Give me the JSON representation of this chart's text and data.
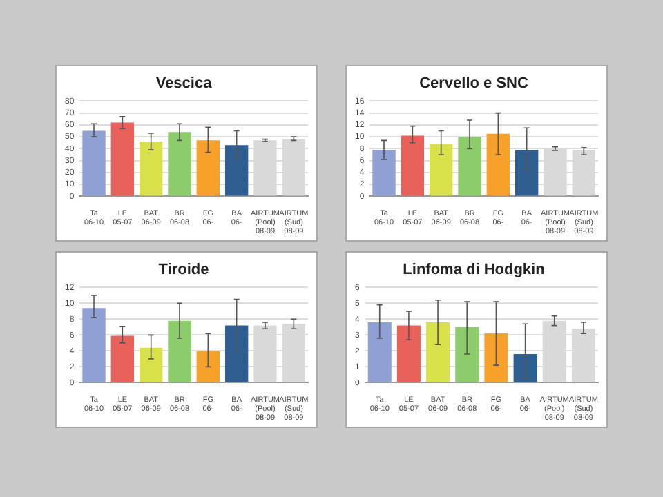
{
  "chart_data": [
    {
      "type": "bar",
      "title": "Vescica",
      "categories": [
        "Ta 06-10",
        "LE 05-07",
        "BAT 06-09",
        "BR 06-08",
        "FG 06-",
        "BA 06-",
        "AIRTUM (Pool) 08-09",
        "AIRTUM (Sud) 08-09"
      ],
      "colors": [
        "#8ea0d4",
        "#e8615a",
        "#d8e04a",
        "#8ccc6a",
        "#f7a12a",
        "#2f5f90",
        "#d9d9d9",
        "#d9d9d9"
      ],
      "values": [
        55,
        62,
        46,
        54,
        47,
        43,
        47,
        48
      ],
      "errors": [
        [
          50,
          61
        ],
        [
          57,
          67
        ],
        [
          39,
          53
        ],
        [
          47,
          61
        ],
        [
          37,
          58
        ],
        [
          32,
          55
        ],
        [
          46,
          48
        ],
        [
          47,
          50
        ]
      ],
      "ylim": [
        0,
        80
      ],
      "yticks": [
        0,
        10,
        20,
        30,
        40,
        50,
        60,
        70,
        80
      ],
      "grid": "y",
      "legend": false
    },
    {
      "type": "bar",
      "title": "Cervello e SNC",
      "categories": [
        "Ta 06-10",
        "LE 05-07",
        "BAT 06-09",
        "BR 06-08",
        "FG 06-",
        "BA 06-",
        "AIRTUM (Pool) 08-09",
        "AIRTUM (Sud) 08-09"
      ],
      "colors": [
        "#8ea0d4",
        "#e8615a",
        "#d8e04a",
        "#8ccc6a",
        "#f7a12a",
        "#2f5f90",
        "#d9d9d9",
        "#d9d9d9"
      ],
      "values": [
        7.8,
        10.2,
        8.8,
        10,
        10.5,
        7.8,
        8,
        7.8
      ],
      "errors": [
        [
          6.2,
          9.4
        ],
        [
          9,
          11.8
        ],
        [
          7,
          11
        ],
        [
          8,
          12.8
        ],
        [
          7,
          14
        ],
        [
          4.5,
          11.5
        ],
        [
          7.7,
          8.3
        ],
        [
          7,
          8.2
        ]
      ],
      "ylim": [
        0,
        16
      ],
      "yticks": [
        0,
        2,
        4,
        6,
        8,
        10,
        12,
        14,
        16
      ],
      "grid": "y",
      "legend": false
    },
    {
      "type": "bar",
      "title": "Tiroide",
      "categories": [
        "Ta 06-10",
        "LE 05-07",
        "BAT 06-09",
        "BR 06-08",
        "FG 06-",
        "BA 06-",
        "AIRTUM (Pool) 08-09",
        "AIRTUM (Sud) 08-09"
      ],
      "colors": [
        "#8ea0d4",
        "#e8615a",
        "#d8e04a",
        "#8ccc6a",
        "#f7a12a",
        "#2f5f90",
        "#d9d9d9",
        "#d9d9d9"
      ],
      "values": [
        9.4,
        5.9,
        4.4,
        7.8,
        4,
        7.2,
        7.2,
        7.4
      ],
      "errors": [
        [
          8.2,
          11
        ],
        [
          5,
          7.1
        ],
        [
          3,
          6
        ],
        [
          5.6,
          10
        ],
        [
          2,
          6.2
        ],
        [
          4,
          10.5
        ],
        [
          6.8,
          7.6
        ],
        [
          6.8,
          8
        ]
      ],
      "ylim": [
        0,
        12
      ],
      "yticks": [
        0,
        2,
        4,
        6,
        8,
        10,
        12
      ],
      "grid": "y",
      "legend": false
    },
    {
      "type": "bar",
      "title": "Linfoma di Hodgkin",
      "categories": [
        "Ta 06-10",
        "LE 05-07",
        "BAT 06-09",
        "BR 06-08",
        "FG 06-",
        "BA 06-",
        "AIRTUM (Pool) 08-09",
        "AIRTUM (Sud) 08-09"
      ],
      "colors": [
        "#8ea0d4",
        "#e8615a",
        "#d8e04a",
        "#8ccc6a",
        "#f7a12a",
        "#2f5f90",
        "#d9d9d9",
        "#d9d9d9"
      ],
      "values": [
        3.8,
        3.6,
        3.8,
        3.5,
        3.1,
        1.8,
        3.9,
        3.4
      ],
      "errors": [
        [
          2.8,
          4.9
        ],
        [
          2.7,
          4.5
        ],
        [
          2.4,
          5.2
        ],
        [
          1.8,
          5.1
        ],
        [
          1.1,
          5.1
        ],
        [
          0.3,
          3.7
        ],
        [
          3.6,
          4.2
        ],
        [
          3.1,
          3.8
        ]
      ],
      "ylim": [
        0,
        6
      ],
      "yticks": [
        0,
        1,
        2,
        3,
        4,
        5,
        6
      ],
      "grid": "y",
      "legend": false
    }
  ]
}
